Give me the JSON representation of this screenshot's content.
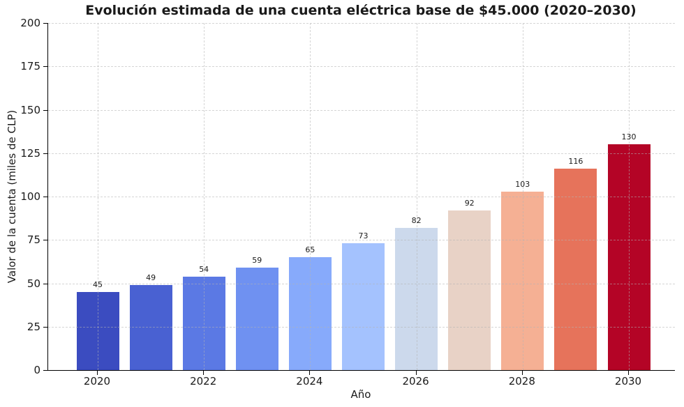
{
  "chart_data": {
    "type": "bar",
    "title": "Evolución estimada de una cuenta eléctrica base de $45.000 (2020–2030)",
    "xlabel": "Año",
    "ylabel": "Valor de la cuenta (miles de CLP)",
    "categories": [
      "2020",
      "2021",
      "2022",
      "2023",
      "2024",
      "2025",
      "2026",
      "2027",
      "2028",
      "2029",
      "2030"
    ],
    "values": [
      45,
      49,
      54,
      59,
      65,
      73,
      82,
      92,
      103,
      116,
      130
    ],
    "value_labels": [
      "45",
      "49",
      "54",
      "59",
      "65",
      "73",
      "82",
      "92",
      "103",
      "116",
      "130"
    ],
    "bar_colors": [
      "#3b4cc0",
      "#4961d2",
      "#5b79e4",
      "#6f91f1",
      "#87aafb",
      "#a4c2fe",
      "#ccd9ec",
      "#e8d2c6",
      "#f5b094",
      "#e6735b",
      "#b40426"
    ],
    "ylim": [
      0,
      200
    ],
    "yticks": [
      0,
      25,
      50,
      75,
      100,
      125,
      150,
      175,
      200
    ],
    "ytick_labels": [
      "0",
      "25",
      "50",
      "75",
      "100",
      "125",
      "150",
      "175",
      "200"
    ],
    "xtick_labels": [
      "2020",
      "2022",
      "2024",
      "2026",
      "2028",
      "2030"
    ],
    "xtick_year_step": 2,
    "legend": "none",
    "grid": {
      "style": "dashed",
      "horizontal": true,
      "vertical_at_labeled_ticks": true,
      "drawn_above_bars": true,
      "color": "#b2b2b2"
    },
    "colormap": "coolwarm (normalized to bar values)"
  },
  "colors": {
    "background": "#ffffff",
    "axis": "#000000",
    "text": "#1a1a1a",
    "first_bar": "#3b4cc0",
    "last_bar": "#b40426"
  }
}
